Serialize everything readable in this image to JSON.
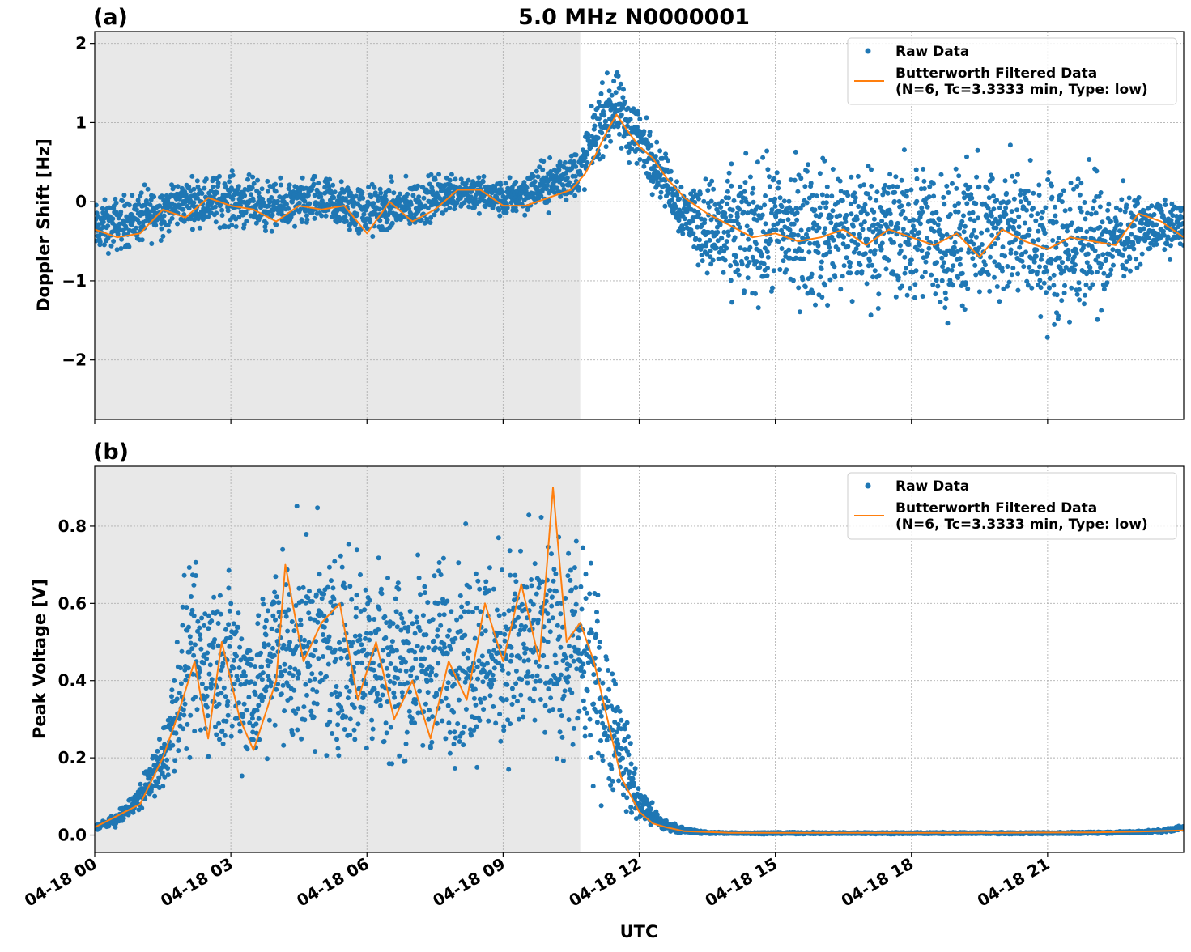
{
  "figure": {
    "title": "5.0 MHz N0000001",
    "xlabel": "UTC",
    "x_tick_labels": [
      "04-18 00",
      "04-18 03",
      "04-18 06",
      "04-18 09",
      "04-18 12",
      "04-18 15",
      "04-18 18",
      "04-18 21"
    ]
  },
  "colors": {
    "raw": "#1f77b4",
    "filtered": "#ff7f0e",
    "night_shade": "#e8e8e8",
    "grid": "#b0b0b0"
  },
  "legend": {
    "raw_label": "Raw Data",
    "filtered_label_line1": "Butterworth Filtered Data",
    "filtered_label_line2": "(N=6, Tc=3.3333 min, Type: low)",
    "placement": "top-right"
  },
  "chart_data": [
    {
      "type": "scatter",
      "panel_label": "(a)",
      "title": "5.0 MHz N0000001",
      "xlabel": "",
      "ylabel": "Doppler Shift [Hz]",
      "x_unit": "hours UTC on 04-18",
      "xlim": [
        0,
        24
      ],
      "ylim": [
        -2.75,
        2.15
      ],
      "y_ticks": [
        2,
        1,
        0,
        -1,
        -2
      ],
      "y_tick_labels": [
        "2",
        "1",
        "0",
        "−1",
        "−2"
      ],
      "grid": true,
      "shaded_x_range": [
        0,
        10.7
      ],
      "series": [
        {
          "name": "Raw Data",
          "style": "dots",
          "envelope": {
            "x": [
              0,
              1,
              2,
              3,
              4,
              5,
              6,
              7,
              8,
              9,
              10,
              10.7,
              11,
              11.4,
              12,
              12.5,
              13,
              14,
              15,
              16,
              17,
              18,
              19,
              20,
              21,
              22,
              23,
              24
            ],
            "lower": [
              -0.8,
              -0.7,
              -0.4,
              -0.45,
              -0.5,
              -0.45,
              -0.6,
              -0.5,
              -0.2,
              -0.3,
              -0.2,
              -0.1,
              0.3,
              0.5,
              0.2,
              -0.1,
              -0.7,
              -1.6,
              -1.6,
              -1.7,
              -1.6,
              -1.7,
              -1.8,
              -1.6,
              -1.9,
              -1.8,
              -0.9,
              -0.7
            ],
            "upper": [
              0.1,
              0.3,
              0.4,
              0.5,
              0.35,
              0.45,
              0.35,
              0.4,
              0.5,
              0.35,
              0.65,
              0.85,
              1.4,
              1.9,
              1.4,
              0.8,
              0.4,
              0.7,
              0.9,
              0.9,
              0.9,
              0.9,
              0.8,
              0.9,
              0.8,
              0.7,
              0.2,
              0.1
            ]
          }
        },
        {
          "name": "Butterworth Filtered Data (N=6, Tc=3.3333 min, Type: low)",
          "style": "line",
          "x": [
            0,
            0.5,
            1,
            1.5,
            2,
            2.5,
            3,
            3.5,
            4,
            4.5,
            5,
            5.5,
            6,
            6.5,
            7,
            7.5,
            8,
            8.5,
            9,
            9.5,
            10,
            10.5,
            10.8,
            11,
            11.3,
            11.5,
            11.8,
            12,
            12.3,
            12.6,
            13,
            13.5,
            14,
            14.5,
            15,
            15.5,
            16,
            16.5,
            17,
            17.5,
            18,
            18.5,
            19,
            19.5,
            20,
            20.5,
            21,
            21.5,
            22,
            22.5,
            23,
            23.5,
            24
          ],
          "y": [
            -0.35,
            -0.45,
            -0.4,
            -0.1,
            -0.2,
            0.05,
            -0.05,
            -0.1,
            -0.25,
            -0.05,
            -0.1,
            -0.05,
            -0.4,
            0.0,
            -0.25,
            -0.1,
            0.15,
            0.15,
            -0.05,
            -0.05,
            0.05,
            0.15,
            0.35,
            0.55,
            0.9,
            1.1,
            0.85,
            0.7,
            0.55,
            0.3,
            0.05,
            -0.15,
            -0.3,
            -0.45,
            -0.4,
            -0.5,
            -0.45,
            -0.35,
            -0.55,
            -0.35,
            -0.45,
            -0.55,
            -0.4,
            -0.7,
            -0.35,
            -0.5,
            -0.6,
            -0.45,
            -0.5,
            -0.55,
            -0.15,
            -0.25,
            -0.45
          ]
        }
      ]
    },
    {
      "type": "scatter",
      "panel_label": "(b)",
      "title": "",
      "xlabel": "UTC",
      "ylabel": "Peak Voltage [V]",
      "x_unit": "hours UTC on 04-18",
      "xlim": [
        0,
        24
      ],
      "ylim": [
        -0.045,
        0.955
      ],
      "y_ticks": [
        0.8,
        0.6,
        0.4,
        0.2,
        0.0
      ],
      "y_tick_labels": [
        "0.8",
        "0.6",
        "0.4",
        "0.2",
        "0.0"
      ],
      "grid": true,
      "shaded_x_range": [
        0,
        10.7
      ],
      "series": [
        {
          "name": "Raw Data",
          "style": "dots",
          "envelope": {
            "x": [
              0,
              0.5,
              1,
              1.5,
              2,
              2.5,
              3,
              3.5,
              4,
              5,
              6,
              7,
              8,
              9,
              10,
              10.7,
              11,
              11.5,
              12,
              12.5,
              13,
              13.5,
              14,
              15,
              18,
              21,
              22.5,
              23.5,
              24
            ],
            "lower": [
              0.01,
              0.02,
              0.05,
              0.08,
              0.1,
              0.1,
              0.1,
              0.1,
              0.1,
              0.1,
              0.1,
              0.1,
              0.1,
              0.1,
              0.1,
              0.08,
              0.05,
              0.03,
              0.01,
              0.005,
              0.003,
              0.002,
              0.002,
              0.002,
              0.002,
              0.002,
              0.003,
              0.005,
              0.01
            ],
            "upper": [
              0.03,
              0.06,
              0.15,
              0.3,
              0.75,
              0.8,
              0.78,
              0.65,
              0.87,
              0.86,
              0.85,
              0.78,
              0.84,
              0.86,
              0.88,
              0.85,
              0.75,
              0.5,
              0.15,
              0.05,
              0.02,
              0.01,
              0.008,
              0.008,
              0.008,
              0.008,
              0.01,
              0.015,
              0.03
            ]
          }
        },
        {
          "name": "Butterworth Filtered Data (N=6, Tc=3.3333 min, Type: low)",
          "style": "line",
          "x": [
            0,
            0.5,
            1,
            1.5,
            1.8,
            2.2,
            2.5,
            2.8,
            3.2,
            3.5,
            4,
            4.2,
            4.6,
            5,
            5.4,
            5.8,
            6.2,
            6.6,
            7,
            7.4,
            7.8,
            8.2,
            8.6,
            9,
            9.4,
            9.8,
            10.1,
            10.4,
            10.7,
            11,
            11.3,
            11.6,
            12,
            12.3,
            12.6,
            13,
            13.5,
            14,
            16,
            18,
            20,
            22,
            23,
            24
          ],
          "y": [
            0.02,
            0.05,
            0.08,
            0.2,
            0.3,
            0.45,
            0.25,
            0.5,
            0.3,
            0.22,
            0.4,
            0.7,
            0.45,
            0.55,
            0.6,
            0.35,
            0.5,
            0.3,
            0.4,
            0.25,
            0.45,
            0.35,
            0.6,
            0.45,
            0.65,
            0.45,
            0.9,
            0.5,
            0.55,
            0.45,
            0.3,
            0.15,
            0.06,
            0.03,
            0.02,
            0.01,
            0.008,
            0.006,
            0.006,
            0.006,
            0.006,
            0.007,
            0.009,
            0.012
          ]
        }
      ]
    }
  ]
}
